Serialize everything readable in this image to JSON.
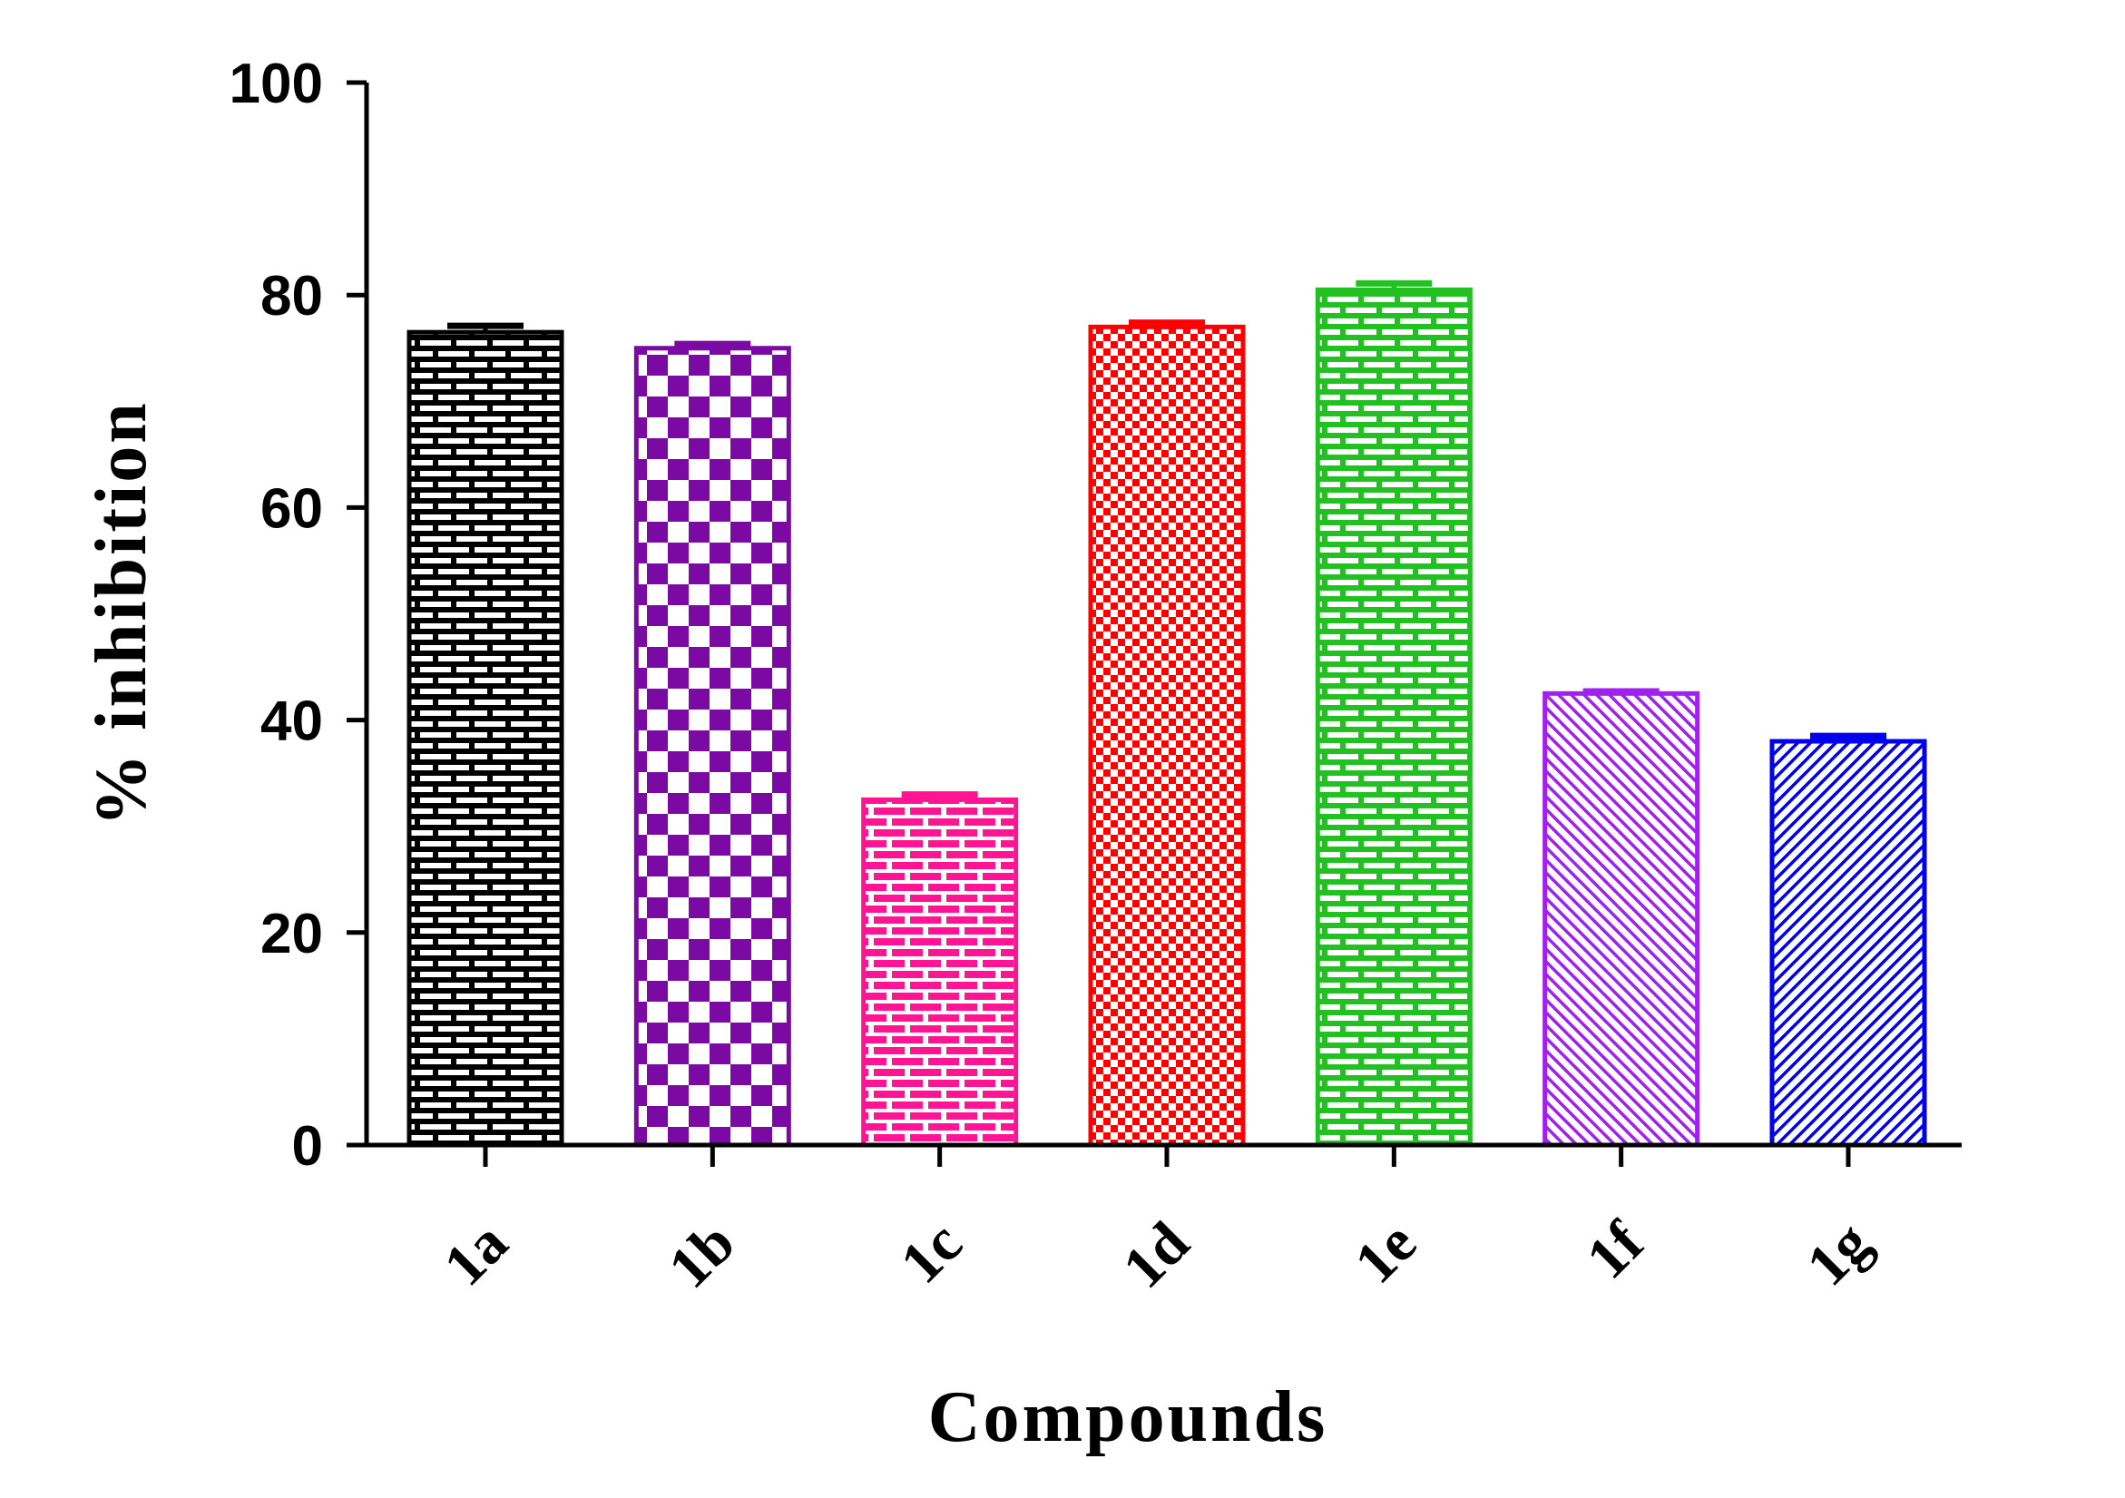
{
  "chart_data": {
    "type": "bar",
    "title": "",
    "xlabel": "Compounds",
    "ylabel": "% inhibition",
    "categories": [
      "1a",
      "1b",
      "1c",
      "1d",
      "1e",
      "1f",
      "1g"
    ],
    "values": [
      76.5,
      75,
      32.5,
      77,
      80.5,
      42.5,
      38
    ],
    "errors": [
      0.6,
      0.4,
      0.5,
      0.4,
      0.6,
      0.2,
      0.5
    ],
    "ylim": [
      0,
      100
    ],
    "yticks": [
      0,
      20,
      40,
      60,
      80,
      100
    ],
    "grid": false,
    "series_colors": [
      "#000000",
      "#7b0aa5",
      "#ff1493",
      "#ff0000",
      "#22c122",
      "#a020f0",
      "#0000ee"
    ],
    "patterns": [
      "brick",
      "checker",
      "brick-filled",
      "fine-checker",
      "brick",
      "diagonal-down",
      "diagonal-up"
    ]
  }
}
